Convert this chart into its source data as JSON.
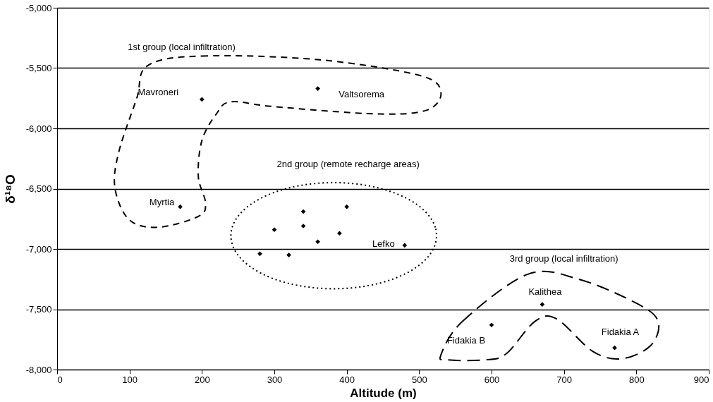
{
  "chart_data": {
    "type": "scatter",
    "xlabel": "Altitude (m)",
    "ylabel": "δ¹⁸O",
    "x": [
      200,
      360,
      170,
      340,
      400,
      300,
      340,
      390,
      360,
      280,
      320,
      480,
      670,
      600,
      770
    ],
    "series": [
      {
        "color": "#000000",
        "values": [
          -5760,
          -5670,
          -6650,
          -6690,
          -6650,
          -6840,
          -6810,
          -6870,
          -6940,
          -7040,
          -7050,
          -6970,
          -7460,
          -7630,
          -7820
        ]
      }
    ],
    "marker": "diamond",
    "grid": "y",
    "xlim": [
      0,
      900
    ],
    "xticks": [
      0,
      100,
      200,
      300,
      400,
      500,
      600,
      700,
      800,
      900
    ],
    "ylim": [
      -8000,
      -5000
    ],
    "yticks": [
      {
        "value": -8000,
        "label": "-8,000"
      },
      {
        "value": -7500,
        "label": "-7,500"
      },
      {
        "value": -7000,
        "label": "-7,000"
      },
      {
        "value": -6500,
        "label": "-6,500"
      },
      {
        "value": -6000,
        "label": "-6,000"
      },
      {
        "value": -5500,
        "label": "-5,500"
      },
      {
        "value": -5000,
        "label": "-5,000"
      }
    ],
    "annotations": [
      {
        "text": "Mavroneri",
        "x": 200,
        "y": -5760
      },
      {
        "text": "Valtsorema",
        "x": 360,
        "y": -5670
      },
      {
        "text": "Myrtia",
        "x": 170,
        "y": -6650
      },
      {
        "text": "Lefko",
        "x": 480,
        "y": -6970
      },
      {
        "text": "Kalithea",
        "x": 670,
        "y": -7460
      },
      {
        "text": "Fidakia B",
        "x": 600,
        "y": -7630
      },
      {
        "text": "Fidakia A",
        "x": 770,
        "y": -7820
      },
      "1st group (local infiltration)",
      "2nd group (remote recharge areas)",
      "3rd group (local infiltration)"
    ]
  }
}
